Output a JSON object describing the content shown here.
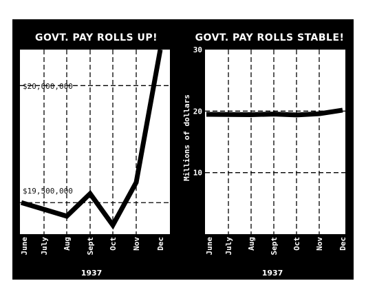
{
  "chart_data": [
    {
      "type": "line",
      "title": "GOVT. PAY ROLLS UP!",
      "categories": [
        "June",
        "July",
        "Aug",
        "Sept",
        "Oct",
        "Nov",
        "Dec"
      ],
      "year": "1937",
      "series": [
        {
          "values": [
            19480000,
            19450000,
            19420000,
            19520000,
            19380000,
            19570000,
            20160000
          ]
        }
      ],
      "annotations": [
        {
          "label": "$20,000,000",
          "y": 20000000
        },
        {
          "label": "$19,500,000",
          "y": 19480000
        }
      ],
      "ylim": [
        19340000,
        20160000
      ],
      "grid": true,
      "line_color": "#000000",
      "background": "#000000",
      "plot_background": "#ffffff"
    },
    {
      "type": "line",
      "title": "GOVT. PAY ROLLS STABLE!",
      "categories": [
        "June",
        "July",
        "Aug",
        "Sept",
        "Oct",
        "Nov",
        "Dec"
      ],
      "year": "1937",
      "ylabel": "Millions of dollars",
      "yticks": [
        "10",
        "20",
        "30"
      ],
      "series": [
        {
          "values": [
            19.48,
            19.45,
            19.42,
            19.52,
            19.38,
            19.57,
            20.16
          ]
        }
      ],
      "ylim": [
        0,
        30
      ],
      "grid": true,
      "line_color": "#000000",
      "background": "#000000",
      "plot_background": "#ffffff"
    }
  ]
}
